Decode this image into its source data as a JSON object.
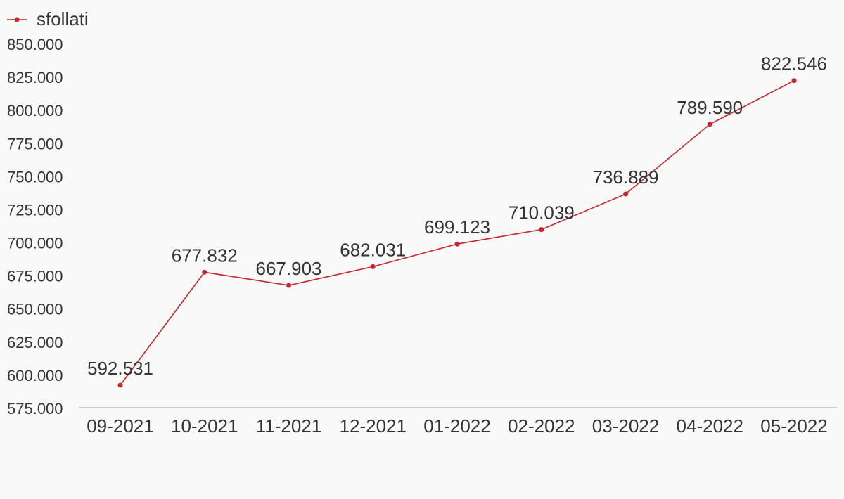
{
  "chart_data": {
    "type": "line",
    "categories": [
      "09-2021",
      "10-2021",
      "11-2021",
      "12-2021",
      "01-2022",
      "02-2022",
      "03-2022",
      "04-2022",
      "05-2022"
    ],
    "series": [
      {
        "name": "sfollati",
        "values": [
          592531,
          677832,
          667903,
          682031,
          699123,
          710039,
          736889,
          789590,
          822546
        ],
        "labels": [
          "592.531",
          "677.832",
          "667.903",
          "682.031",
          "699.123",
          "710.039",
          "736.889",
          "789.590",
          "822.546"
        ],
        "color": "#c9262c"
      }
    ],
    "y_ticks": [
      575000,
      600000,
      625000,
      650000,
      675000,
      700000,
      725000,
      750000,
      775000,
      800000,
      825000,
      850000
    ],
    "y_tick_labels": [
      "575.000",
      "600.000",
      "625.000",
      "650.000",
      "675.000",
      "700.000",
      "725.000",
      "750.000",
      "775.000",
      "800.000",
      "825.000",
      "850.000"
    ],
    "ylim": [
      575000,
      850000
    ],
    "grid": false,
    "legend": "top-left"
  }
}
